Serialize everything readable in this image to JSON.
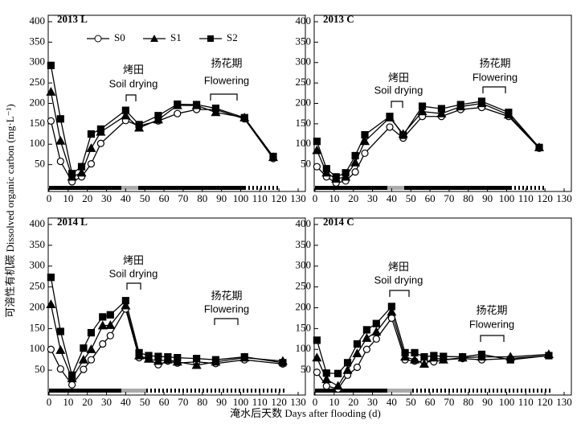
{
  "ylabel": "可溶性有机碳 Dissolved organic carbon (mg·L⁻¹)",
  "xlabel": "淹水后天数 Days after flooding (d)",
  "chart_data": [
    {
      "type": "line",
      "title": "2013 L",
      "x": [
        1,
        6,
        12,
        17,
        22,
        27,
        40,
        47,
        57,
        67,
        77,
        87,
        102,
        117
      ],
      "series": [
        {
          "name": "S0",
          "color": "#000000",
          "marker": "circle",
          "values": [
            157,
            58,
            8,
            20,
            52,
            102,
            158,
            145,
            157,
            175,
            185,
            185,
            162,
            65
          ]
        },
        {
          "name": "S1",
          "color": "#000000",
          "marker": "triangle",
          "values": [
            228,
            108,
            20,
            30,
            90,
            130,
            170,
            140,
            160,
            195,
            195,
            178,
            165,
            68
          ]
        },
        {
          "name": "S2",
          "color": "#000000",
          "marker": "square",
          "values": [
            293,
            162,
            28,
            45,
            125,
            137,
            183,
            148,
            170,
            198,
            197,
            188,
            165,
            70
          ]
        }
      ],
      "annotations": [
        "烤田",
        "Soil drying",
        "扬花期",
        "Flowering"
      ],
      "xlim": [
        0,
        130
      ],
      "xticks": [
        0,
        10,
        20,
        30,
        40,
        50,
        60,
        70,
        80,
        90,
        100,
        110,
        120,
        130
      ],
      "ylim": [
        0,
        400
      ],
      "yticks": [
        50,
        100,
        150,
        200,
        250,
        300,
        350,
        400
      ],
      "legend": "top"
    },
    {
      "type": "line",
      "title": "2013 C",
      "x": [
        1,
        6,
        11,
        16,
        21,
        26,
        39,
        46,
        56,
        66,
        76,
        87,
        101,
        117
      ],
      "series": [
        {
          "name": "S0",
          "color": "#000000",
          "marker": "circle",
          "values": [
            45,
            20,
            5,
            10,
            32,
            78,
            142,
            115,
            168,
            168,
            185,
            190,
            168,
            90
          ]
        },
        {
          "name": "S1",
          "color": "#000000",
          "marker": "triangle",
          "values": [
            85,
            30,
            15,
            20,
            55,
            107,
            165,
            125,
            180,
            175,
            192,
            200,
            172,
            92
          ]
        },
        {
          "name": "S2",
          "color": "#000000",
          "marker": "square",
          "values": [
            107,
            40,
            20,
            30,
            72,
            123,
            168,
            122,
            193,
            187,
            197,
            205,
            178,
            92
          ]
        }
      ],
      "annotations": [
        "烤田",
        "Soil drying",
        "扬花期",
        "Flowering"
      ],
      "xlim": [
        0,
        130
      ],
      "xticks": [
        0,
        10,
        20,
        30,
        40,
        50,
        60,
        70,
        80,
        90,
        100,
        110,
        120,
        130
      ],
      "ylim": [
        0,
        400
      ],
      "yticks": [
        50,
        100,
        150,
        200,
        250,
        300,
        350,
        400
      ]
    },
    {
      "type": "line",
      "title": "2014 L",
      "x": [
        1,
        6,
        12,
        18,
        22,
        28,
        32,
        40,
        47,
        52,
        57,
        62,
        67,
        77,
        87,
        102,
        122
      ],
      "series": [
        {
          "name": "S0",
          "color": "#000000",
          "marker": "circle",
          "values": [
            100,
            53,
            15,
            52,
            75,
            113,
            133,
            197,
            80,
            77,
            63,
            72,
            67,
            70,
            66,
            75,
            65
          ]
        },
        {
          "name": "S1",
          "color": "#000000",
          "marker": "triangle",
          "values": [
            208,
            98,
            30,
            75,
            100,
            157,
            158,
            205,
            85,
            77,
            72,
            75,
            70,
            62,
            70,
            80,
            72
          ]
        },
        {
          "name": "S2",
          "color": "#000000",
          "marker": "square",
          "values": [
            273,
            143,
            38,
            103,
            140,
            178,
            183,
            217,
            92,
            85,
            83,
            82,
            80,
            78,
            75,
            82,
            68
          ]
        }
      ],
      "annotations": [
        "烤田",
        "Soil drying",
        "扬花期",
        "Flowering"
      ],
      "xlim": [
        0,
        130
      ],
      "xticks": [
        0,
        10,
        20,
        30,
        40,
        50,
        60,
        70,
        80,
        90,
        100,
        110,
        120,
        130
      ],
      "ylim": [
        0,
        400
      ],
      "yticks": [
        50,
        100,
        150,
        200,
        250,
        300,
        350,
        400
      ]
    },
    {
      "type": "line",
      "title": "2014 C",
      "x": [
        1,
        6,
        12,
        17,
        22,
        27,
        32,
        40,
        47,
        52,
        57,
        62,
        67,
        77,
        87,
        102,
        122
      ],
      "series": [
        {
          "name": "S0",
          "color": "#000000",
          "marker": "circle",
          "values": [
            45,
            12,
            5,
            38,
            57,
            100,
            125,
            175,
            75,
            72,
            70,
            70,
            75,
            78,
            75,
            78,
            85
          ]
        },
        {
          "name": "S1",
          "color": "#000000",
          "marker": "triangle",
          "values": [
            80,
            28,
            12,
            50,
            90,
            127,
            142,
            190,
            82,
            75,
            65,
            80,
            75,
            80,
            82,
            82,
            88
          ]
        },
        {
          "name": "S2",
          "color": "#000000",
          "marker": "square",
          "values": [
            122,
            43,
            42,
            68,
            113,
            147,
            162,
            203,
            92,
            92,
            82,
            85,
            83,
            82,
            88,
            75,
            85
          ]
        }
      ],
      "annotations": [
        "烤田",
        "Soil drying",
        "扬花期",
        "Flowering"
      ],
      "xlim": [
        0,
        130
      ],
      "xticks": [
        0,
        10,
        20,
        30,
        40,
        50,
        60,
        70,
        80,
        90,
        100,
        110,
        120,
        130
      ],
      "ylim": [
        0,
        400
      ],
      "yticks": [
        50,
        100,
        150,
        200,
        250,
        300,
        350,
        400
      ]
    }
  ]
}
